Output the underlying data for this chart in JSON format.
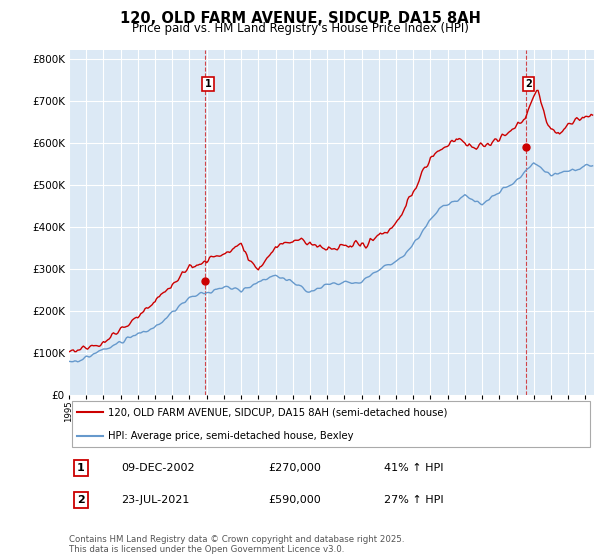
{
  "title": "120, OLD FARM AVENUE, SIDCUP, DA15 8AH",
  "subtitle": "Price paid vs. HM Land Registry's House Price Index (HPI)",
  "legend_line1": "120, OLD FARM AVENUE, SIDCUP, DA15 8AH (semi-detached house)",
  "legend_line2": "HPI: Average price, semi-detached house, Bexley",
  "footnote": "Contains HM Land Registry data © Crown copyright and database right 2025.\nThis data is licensed under the Open Government Licence v3.0.",
  "marker1_date": "09-DEC-2002",
  "marker1_price": 270000,
  "marker1_hpi": "41% ↑ HPI",
  "marker2_date": "23-JUL-2021",
  "marker2_price": 590000,
  "marker2_hpi": "27% ↑ HPI",
  "red_color": "#cc0000",
  "blue_color": "#6699cc",
  "dashed_red": "#cc0000",
  "chart_bg": "#dce9f5",
  "background": "#ffffff",
  "grid_color": "#ffffff",
  "ylim": [
    0,
    820000
  ],
  "yticks": [
    0,
    100000,
    200000,
    300000,
    400000,
    500000,
    600000,
    700000,
    800000
  ],
  "ytick_labels": [
    "£0",
    "£100K",
    "£200K",
    "£300K",
    "£400K",
    "£500K",
    "£600K",
    "£700K",
    "£800K"
  ],
  "sale1_year": 2002.92,
  "sale2_year": 2021.54
}
